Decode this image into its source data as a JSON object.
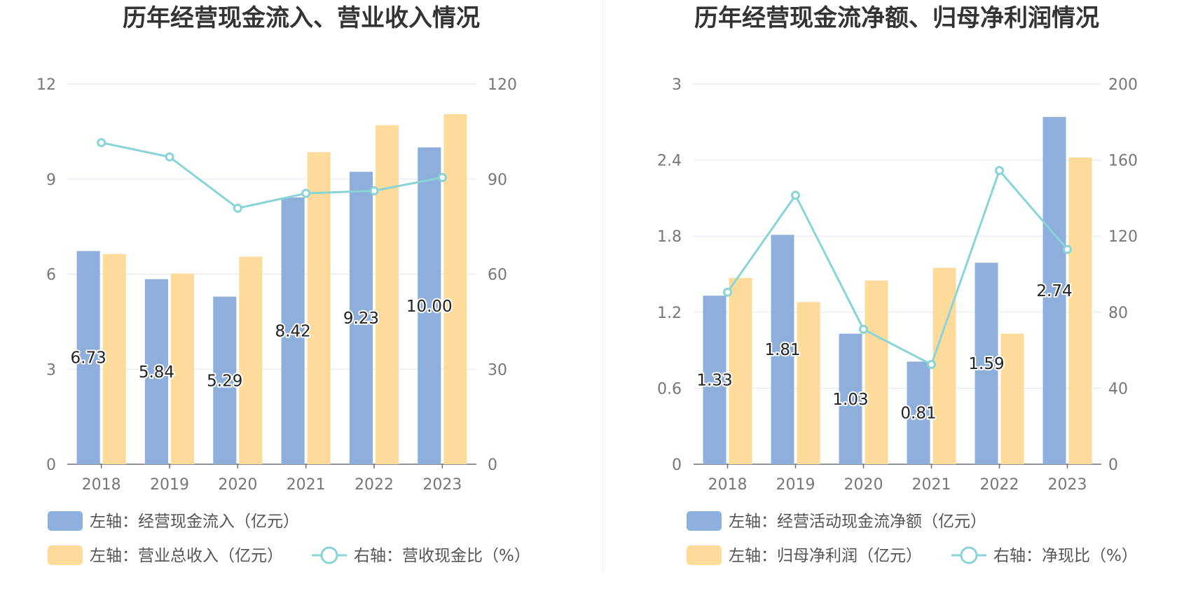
{
  "chart_data": [
    {
      "type": "bar",
      "title": "历年经营现金流入、营业收入情况",
      "categories": [
        "2018",
        "2019",
        "2020",
        "2021",
        "2022",
        "2023"
      ],
      "y_left": {
        "ylim": [
          0,
          12
        ],
        "ticks": [
          0,
          3,
          6,
          9,
          12
        ]
      },
      "y_right": {
        "ylim": [
          0,
          120
        ],
        "ticks": [
          0,
          30,
          60,
          90,
          120
        ]
      },
      "series": [
        {
          "name": "左轴：经营现金流入（亿元）",
          "type": "bar",
          "axis": "left",
          "color": "#8eaedb",
          "values": [
            6.73,
            5.84,
            5.29,
            8.42,
            9.23,
            10.0
          ],
          "labels": [
            "6.73",
            "5.84",
            "5.29",
            "8.42",
            "9.23",
            "10.00"
          ]
        },
        {
          "name": "左轴：营业总收入（亿元）",
          "type": "bar",
          "axis": "left",
          "color": "#fedb9b",
          "values": [
            6.63,
            6.02,
            6.55,
            9.85,
            10.7,
            11.05
          ]
        },
        {
          "name": "右轴：营收现金比（%）",
          "type": "line",
          "axis": "right",
          "color": "#88d4d6",
          "values": [
            101.5,
            97.0,
            80.8,
            85.5,
            86.3,
            90.5
          ]
        }
      ],
      "grid": true
    },
    {
      "type": "bar",
      "title": "历年经营现金流净额、归母净利润情况",
      "categories": [
        "2018",
        "2019",
        "2020",
        "2021",
        "2022",
        "2023"
      ],
      "y_left": {
        "ylim": [
          0,
          3
        ],
        "ticks": [
          "0",
          "0.6",
          "1.2",
          "1.8",
          "2.4",
          "3"
        ]
      },
      "y_right": {
        "ylim": [
          0,
          200
        ],
        "ticks": [
          0,
          40,
          80,
          120,
          160,
          200
        ]
      },
      "series": [
        {
          "name": "左轴：经营活动现金流净额（亿元）",
          "type": "bar",
          "axis": "left",
          "color": "#8eaedb",
          "values": [
            1.33,
            1.81,
            1.03,
            0.81,
            1.59,
            2.74
          ],
          "labels": [
            "1.33",
            "1.81",
            "1.03",
            "0.81",
            "1.59",
            "2.74"
          ]
        },
        {
          "name": "左轴：归母净利润（亿元）",
          "type": "bar",
          "axis": "left",
          "color": "#fedb9b",
          "values": [
            1.47,
            1.28,
            1.45,
            1.55,
            1.03,
            2.42
          ]
        },
        {
          "name": "右轴：净现比（%）",
          "type": "line",
          "axis": "right",
          "color": "#88d4d6",
          "values": [
            90.5,
            141.5,
            71.0,
            52.5,
            154.5,
            113.0
          ]
        }
      ],
      "grid": true
    }
  ]
}
